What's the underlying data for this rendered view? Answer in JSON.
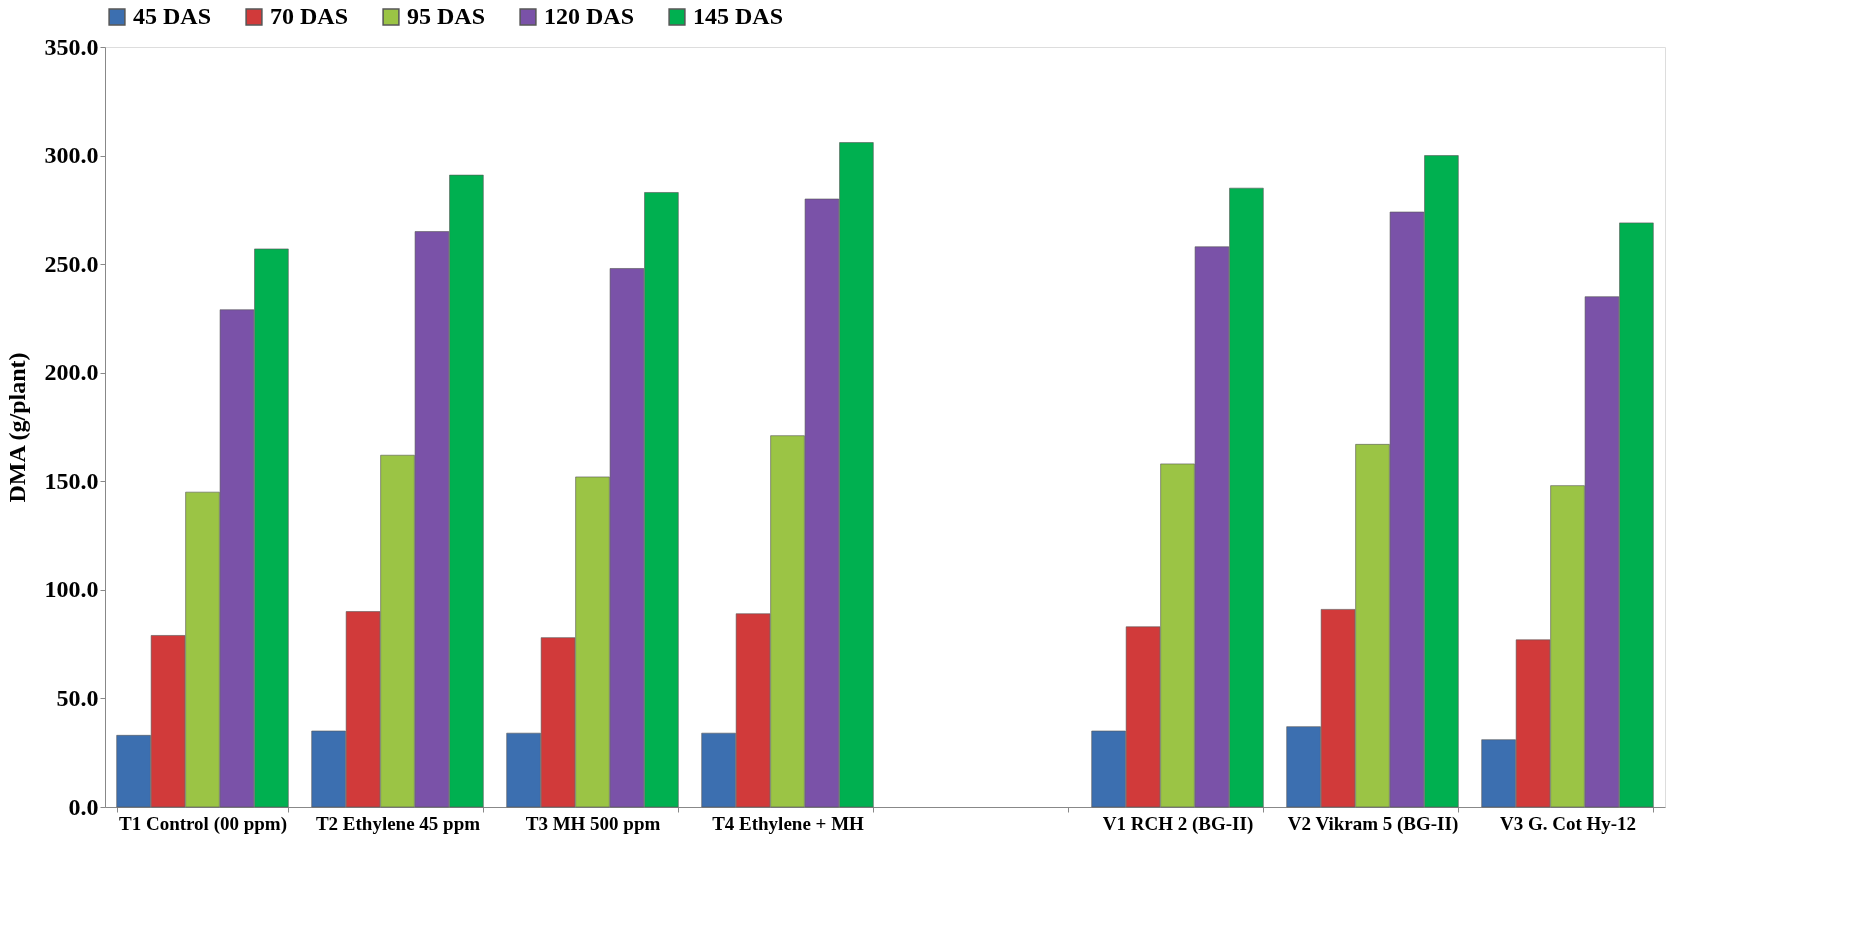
{
  "chart_data": {
    "type": "bar",
    "categories": [
      "T1  Control (00 ppm)",
      "T2 Ethylene 45 ppm",
      "T3 MH 500 ppm",
      "T4 Ethylene + MH",
      null,
      "V1 RCH 2 (BG-II)",
      "V2 Vikram 5 (BG-II)",
      "V3 G. Cot Hy-12"
    ],
    "series": [
      {
        "name": "45 DAS",
        "color": "#3c6fb0",
        "values": [
          33,
          35,
          34,
          34,
          null,
          35,
          37,
          31
        ]
      },
      {
        "name": "70 DAS",
        "color": "#d13a3a",
        "values": [
          79,
          90,
          78,
          89,
          null,
          83,
          91,
          77
        ]
      },
      {
        "name": "95 DAS",
        "color": "#9bc445",
        "values": [
          145,
          162,
          152,
          171,
          null,
          158,
          167,
          148
        ]
      },
      {
        "name": "120 DAS",
        "color": "#7a52a8",
        "values": [
          229,
          265,
          248,
          280,
          null,
          258,
          274,
          235
        ]
      },
      {
        "name": "145 DAS",
        "color": "#00b050",
        "values": [
          257,
          291,
          283,
          306,
          null,
          285,
          300,
          269
        ]
      }
    ],
    "ylabel": "DMA  (g/plant)",
    "ylim": [
      0,
      350
    ],
    "yticks": [
      {
        "value": 0,
        "label": "0.0"
      },
      {
        "value": 50,
        "label": "50.0"
      },
      {
        "value": 100,
        "label": "100.0"
      },
      {
        "value": 150,
        "label": "150.0"
      },
      {
        "value": 200,
        "label": "200.0"
      },
      {
        "value": 250,
        "label": "250.0"
      },
      {
        "value": 300,
        "label": "300.0"
      },
      {
        "value": 350,
        "label": "350.0"
      }
    ],
    "legend": "top",
    "grid": false
  }
}
